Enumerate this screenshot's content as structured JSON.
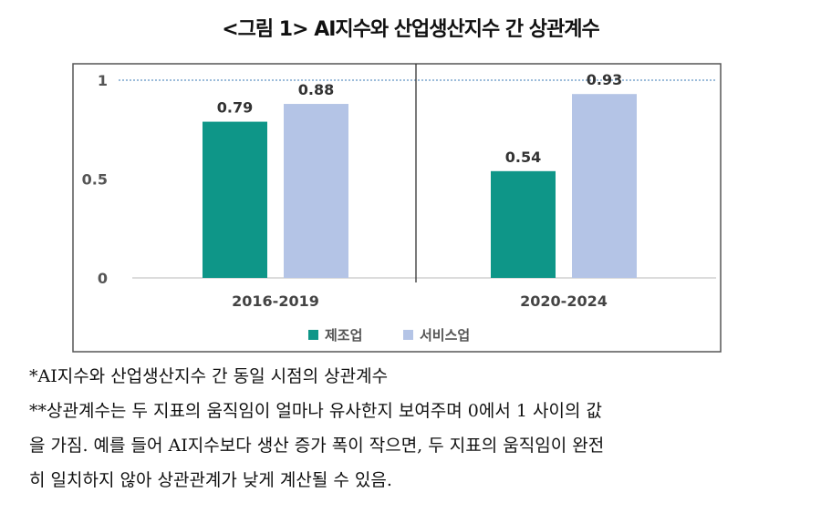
{
  "title": "<그림 1> AI지수와 산업생산지수 간 상관계수",
  "chart_data": {
    "type": "bar",
    "title": "<그림 1> AI지수와 산업생산지수 간 상관계수",
    "categories": [
      "2016-2019",
      "2020-2024"
    ],
    "series": [
      {
        "name": "제조업",
        "values": [
          0.79,
          0.54
        ],
        "color": "#0e9688"
      },
      {
        "name": "서비스업",
        "values": [
          0.88,
          0.93
        ],
        "color": "#b4c4e6"
      }
    ],
    "yticks": [
      "0",
      "0.5",
      "1"
    ],
    "ylim": [
      0,
      1
    ],
    "reference_line": 1,
    "legend": "bottom",
    "grid": false,
    "xlabel": "",
    "ylabel": ""
  },
  "notes": [
    "*AI지수와 산업생산지수 간 동일 시점의 상관계수",
    "**상관계수는 두 지표의 움직임이 얼마나 유사한지 보여주며 0에서 1 사이의 값",
    "을 가짐. 예를 들어 AI지수보다 생산 증가 폭이 작으면, 두 지표의 움직임이 완전",
    "히 일치하지 않아 상관관계가 낮게 계산될 수 있음."
  ]
}
